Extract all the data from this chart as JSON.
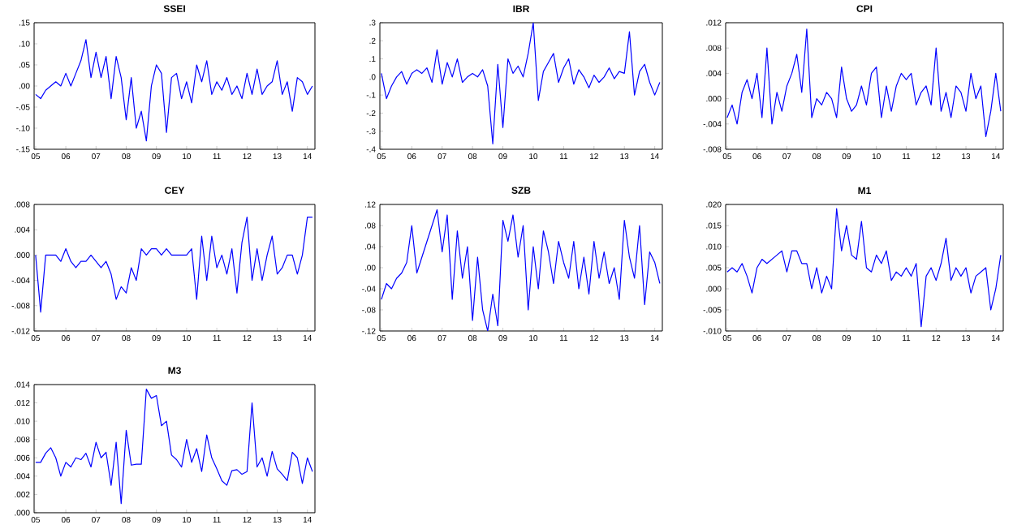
{
  "chart_data": [
    {
      "type": "line",
      "title": "SSEI",
      "color": "#0000ff",
      "xlim": [
        2004.95,
        2014.25
      ],
      "xticks": [
        {
          "value": 2005,
          "label": "05"
        },
        {
          "value": 2006,
          "label": "06"
        },
        {
          "value": 2007,
          "label": "07"
        },
        {
          "value": 2008,
          "label": "08"
        },
        {
          "value": 2009,
          "label": "09"
        },
        {
          "value": 2010,
          "label": "10"
        },
        {
          "value": 2011,
          "label": "11"
        },
        {
          "value": 2012,
          "label": "12"
        },
        {
          "value": 2013,
          "label": "13"
        },
        {
          "value": 2014,
          "label": "14"
        }
      ],
      "ylim": [
        -0.15,
        0.15
      ],
      "yticks": [
        {
          "value": -0.15,
          "label": "-.15"
        },
        {
          "value": -0.1,
          "label": "-.10"
        },
        {
          "value": -0.05,
          "label": "-.05"
        },
        {
          "value": 0,
          "label": ".00"
        },
        {
          "value": 0.05,
          "label": ".05"
        },
        {
          "value": 0.1,
          "label": ".10"
        },
        {
          "value": 0.15,
          "label": ".15"
        }
      ],
      "x": [
        2005,
        2005.167,
        2005.333,
        2005.5,
        2005.667,
        2005.833,
        2006,
        2006.167,
        2006.333,
        2006.5,
        2006.667,
        2006.833,
        2007,
        2007.167,
        2007.333,
        2007.5,
        2007.667,
        2007.833,
        2008,
        2008.167,
        2008.333,
        2008.5,
        2008.667,
        2008.833,
        2009,
        2009.167,
        2009.333,
        2009.5,
        2009.667,
        2009.833,
        2010,
        2010.167,
        2010.333,
        2010.5,
        2010.667,
        2010.833,
        2011,
        2011.167,
        2011.333,
        2011.5,
        2011.667,
        2011.833,
        2012,
        2012.167,
        2012.333,
        2012.5,
        2012.667,
        2012.833,
        2013,
        2013.167,
        2013.333,
        2013.5,
        2013.667,
        2013.833,
        2014,
        2014.167
      ],
      "values": [
        -0.02,
        -0.03,
        -0.01,
        0.0,
        0.01,
        0.0,
        0.03,
        0.0,
        0.03,
        0.06,
        0.11,
        0.02,
        0.08,
        0.02,
        0.07,
        -0.03,
        0.07,
        0.02,
        -0.08,
        0.02,
        -0.1,
        -0.06,
        -0.13,
        0.0,
        0.05,
        0.03,
        -0.11,
        0.02,
        0.03,
        -0.03,
        0.01,
        -0.04,
        0.05,
        0.01,
        0.06,
        -0.02,
        0.01,
        -0.01,
        0.02,
        -0.02,
        0.0,
        -0.03,
        0.03,
        -0.02,
        0.04,
        -0.02,
        0.0,
        0.01,
        0.06,
        -0.02,
        0.01,
        -0.06,
        0.02,
        0.01,
        -0.02,
        0.0
      ]
    },
    {
      "type": "line",
      "title": "IBR",
      "color": "#0000ff",
      "xlim": [
        2004.95,
        2014.25
      ],
      "xticks": [
        {
          "value": 2005,
          "label": "05"
        },
        {
          "value": 2006,
          "label": "06"
        },
        {
          "value": 2007,
          "label": "07"
        },
        {
          "value": 2008,
          "label": "08"
        },
        {
          "value": 2009,
          "label": "09"
        },
        {
          "value": 2010,
          "label": "10"
        },
        {
          "value": 2011,
          "label": "11"
        },
        {
          "value": 2012,
          "label": "12"
        },
        {
          "value": 2013,
          "label": "13"
        },
        {
          "value": 2014,
          "label": "14"
        }
      ],
      "ylim": [
        -0.4,
        0.3
      ],
      "yticks": [
        {
          "value": -0.4,
          "label": "-.4"
        },
        {
          "value": -0.3,
          "label": "-.3"
        },
        {
          "value": -0.2,
          "label": "-.2"
        },
        {
          "value": -0.1,
          "label": "-.1"
        },
        {
          "value": 0,
          "label": ".0"
        },
        {
          "value": 0.1,
          "label": ".1"
        },
        {
          "value": 0.2,
          "label": ".2"
        },
        {
          "value": 0.3,
          "label": ".3"
        }
      ],
      "x": [
        2005,
        2005.167,
        2005.333,
        2005.5,
        2005.667,
        2005.833,
        2006,
        2006.167,
        2006.333,
        2006.5,
        2006.667,
        2006.833,
        2007,
        2007.167,
        2007.333,
        2007.5,
        2007.667,
        2007.833,
        2008,
        2008.167,
        2008.333,
        2008.5,
        2008.667,
        2008.833,
        2009,
        2009.167,
        2009.333,
        2009.5,
        2009.667,
        2009.833,
        2010,
        2010.167,
        2010.333,
        2010.5,
        2010.667,
        2010.833,
        2011,
        2011.167,
        2011.333,
        2011.5,
        2011.667,
        2011.833,
        2012,
        2012.167,
        2012.333,
        2012.5,
        2012.667,
        2012.833,
        2013,
        2013.167,
        2013.333,
        2013.5,
        2013.667,
        2013.833,
        2014,
        2014.167
      ],
      "values": [
        0.02,
        -0.12,
        -0.05,
        0.0,
        0.03,
        -0.04,
        0.02,
        0.04,
        0.02,
        0.05,
        -0.03,
        0.15,
        -0.04,
        0.08,
        0.0,
        0.1,
        -0.03,
        0.0,
        0.02,
        0.0,
        0.04,
        -0.05,
        -0.37,
        0.07,
        -0.28,
        0.1,
        0.02,
        0.06,
        0.0,
        0.13,
        0.3,
        -0.13,
        0.03,
        0.08,
        0.13,
        -0.03,
        0.05,
        0.1,
        -0.04,
        0.04,
        0.0,
        -0.06,
        0.01,
        -0.03,
        0.0,
        0.05,
        -0.01,
        0.03,
        0.02,
        0.25,
        -0.1,
        0.03,
        0.07,
        -0.03,
        -0.1,
        -0.03
      ]
    },
    {
      "type": "line",
      "title": "CPI",
      "color": "#0000ff",
      "xlim": [
        2004.95,
        2014.25
      ],
      "xticks": [
        {
          "value": 2005,
          "label": "05"
        },
        {
          "value": 2006,
          "label": "06"
        },
        {
          "value": 2007,
          "label": "07"
        },
        {
          "value": 2008,
          "label": "08"
        },
        {
          "value": 2009,
          "label": "09"
        },
        {
          "value": 2010,
          "label": "10"
        },
        {
          "value": 2011,
          "label": "11"
        },
        {
          "value": 2012,
          "label": "12"
        },
        {
          "value": 2013,
          "label": "13"
        },
        {
          "value": 2014,
          "label": "14"
        }
      ],
      "ylim": [
        -0.008,
        0.012
      ],
      "yticks": [
        {
          "value": -0.008,
          "label": "-.008"
        },
        {
          "value": -0.004,
          "label": "-.004"
        },
        {
          "value": 0,
          "label": ".000"
        },
        {
          "value": 0.004,
          "label": ".004"
        },
        {
          "value": 0.008,
          "label": ".008"
        },
        {
          "value": 0.012,
          "label": ".012"
        }
      ],
      "x": [
        2005,
        2005.167,
        2005.333,
        2005.5,
        2005.667,
        2005.833,
        2006,
        2006.167,
        2006.333,
        2006.5,
        2006.667,
        2006.833,
        2007,
        2007.167,
        2007.333,
        2007.5,
        2007.667,
        2007.833,
        2008,
        2008.167,
        2008.333,
        2008.5,
        2008.667,
        2008.833,
        2009,
        2009.167,
        2009.333,
        2009.5,
        2009.667,
        2009.833,
        2010,
        2010.167,
        2010.333,
        2010.5,
        2010.667,
        2010.833,
        2011,
        2011.167,
        2011.333,
        2011.5,
        2011.667,
        2011.833,
        2012,
        2012.167,
        2012.333,
        2012.5,
        2012.667,
        2012.833,
        2013,
        2013.167,
        2013.333,
        2013.5,
        2013.667,
        2013.833,
        2014,
        2014.167
      ],
      "values": [
        -0.003,
        -0.001,
        -0.004,
        0.001,
        0.003,
        0.0,
        0.004,
        -0.003,
        0.008,
        -0.004,
        0.001,
        -0.002,
        0.002,
        0.004,
        0.007,
        0.001,
        0.011,
        -0.003,
        0.0,
        -0.001,
        0.001,
        0.0,
        -0.003,
        0.005,
        0.0,
        -0.002,
        -0.001,
        0.002,
        -0.001,
        0.004,
        0.005,
        -0.003,
        0.002,
        -0.002,
        0.002,
        0.004,
        0.003,
        0.004,
        -0.001,
        0.001,
        0.002,
        -0.001,
        0.008,
        -0.002,
        0.001,
        -0.003,
        0.002,
        0.001,
        -0.002,
        0.004,
        0.0,
        0.002,
        -0.006,
        -0.002,
        0.004,
        -0.002
      ]
    },
    {
      "type": "line",
      "title": "CEY",
      "color": "#0000ff",
      "xlim": [
        2004.95,
        2014.25
      ],
      "xticks": [
        {
          "value": 2005,
          "label": "05"
        },
        {
          "value": 2006,
          "label": "06"
        },
        {
          "value": 2007,
          "label": "07"
        },
        {
          "value": 2008,
          "label": "08"
        },
        {
          "value": 2009,
          "label": "09"
        },
        {
          "value": 2010,
          "label": "10"
        },
        {
          "value": 2011,
          "label": "11"
        },
        {
          "value": 2012,
          "label": "12"
        },
        {
          "value": 2013,
          "label": "13"
        },
        {
          "value": 2014,
          "label": "14"
        }
      ],
      "ylim": [
        -0.012,
        0.008
      ],
      "yticks": [
        {
          "value": -0.012,
          "label": "-.012"
        },
        {
          "value": -0.008,
          "label": "-.008"
        },
        {
          "value": -0.004,
          "label": "-.004"
        },
        {
          "value": 0,
          "label": ".000"
        },
        {
          "value": 0.004,
          "label": ".004"
        },
        {
          "value": 0.008,
          "label": ".008"
        }
      ],
      "x": [
        2005,
        2005.167,
        2005.333,
        2005.5,
        2005.667,
        2005.833,
        2006,
        2006.167,
        2006.333,
        2006.5,
        2006.667,
        2006.833,
        2007,
        2007.167,
        2007.333,
        2007.5,
        2007.667,
        2007.833,
        2008,
        2008.167,
        2008.333,
        2008.5,
        2008.667,
        2008.833,
        2009,
        2009.167,
        2009.333,
        2009.5,
        2009.667,
        2009.833,
        2010,
        2010.167,
        2010.333,
        2010.5,
        2010.667,
        2010.833,
        2011,
        2011.167,
        2011.333,
        2011.5,
        2011.667,
        2011.833,
        2012,
        2012.167,
        2012.333,
        2012.5,
        2012.667,
        2012.833,
        2013,
        2013.167,
        2013.333,
        2013.5,
        2013.667,
        2013.833,
        2014,
        2014.167
      ],
      "values": [
        0.0,
        -0.009,
        0.0,
        0.0,
        0.0,
        -0.001,
        0.001,
        -0.001,
        -0.002,
        -0.001,
        -0.001,
        0.0,
        -0.001,
        -0.002,
        -0.001,
        -0.003,
        -0.007,
        -0.005,
        -0.006,
        -0.002,
        -0.004,
        0.001,
        0.0,
        0.001,
        0.001,
        0.0,
        0.001,
        0.0,
        0.0,
        0.0,
        0.0,
        0.001,
        -0.007,
        0.003,
        -0.004,
        0.003,
        -0.002,
        0.0,
        -0.003,
        0.001,
        -0.006,
        0.002,
        0.006,
        -0.004,
        0.001,
        -0.004,
        0.0,
        0.003,
        -0.003,
        -0.002,
        0.0,
        0.0,
        -0.003,
        0.0,
        0.006,
        0.006
      ]
    },
    {
      "type": "line",
      "title": "SZB",
      "color": "#0000ff",
      "xlim": [
        2004.95,
        2014.25
      ],
      "xticks": [
        {
          "value": 2005,
          "label": "05"
        },
        {
          "value": 2006,
          "label": "06"
        },
        {
          "value": 2007,
          "label": "07"
        },
        {
          "value": 2008,
          "label": "08"
        },
        {
          "value": 2009,
          "label": "09"
        },
        {
          "value": 2010,
          "label": "10"
        },
        {
          "value": 2011,
          "label": "11"
        },
        {
          "value": 2012,
          "label": "12"
        },
        {
          "value": 2013,
          "label": "13"
        },
        {
          "value": 2014,
          "label": "14"
        }
      ],
      "ylim": [
        -0.12,
        0.12
      ],
      "yticks": [
        {
          "value": -0.12,
          "label": "-.12"
        },
        {
          "value": -0.08,
          "label": "-.08"
        },
        {
          "value": -0.04,
          "label": "-.04"
        },
        {
          "value": 0,
          "label": ".00"
        },
        {
          "value": 0.04,
          "label": ".04"
        },
        {
          "value": 0.08,
          "label": ".08"
        },
        {
          "value": 0.12,
          "label": ".12"
        }
      ],
      "x": [
        2005,
        2005.167,
        2005.333,
        2005.5,
        2005.667,
        2005.833,
        2006,
        2006.167,
        2006.333,
        2006.5,
        2006.667,
        2006.833,
        2007,
        2007.167,
        2007.333,
        2007.5,
        2007.667,
        2007.833,
        2008,
        2008.167,
        2008.333,
        2008.5,
        2008.667,
        2008.833,
        2009,
        2009.167,
        2009.333,
        2009.5,
        2009.667,
        2009.833,
        2010,
        2010.167,
        2010.333,
        2010.5,
        2010.667,
        2010.833,
        2011,
        2011.167,
        2011.333,
        2011.5,
        2011.667,
        2011.833,
        2012,
        2012.167,
        2012.333,
        2012.5,
        2012.667,
        2012.833,
        2013,
        2013.167,
        2013.333,
        2013.5,
        2013.667,
        2013.833,
        2014,
        2014.167
      ],
      "values": [
        -0.06,
        -0.03,
        -0.04,
        -0.02,
        -0.01,
        0.01,
        0.08,
        -0.01,
        0.02,
        0.05,
        0.08,
        0.11,
        0.03,
        0.1,
        -0.06,
        0.07,
        -0.02,
        0.04,
        -0.1,
        0.02,
        -0.08,
        -0.12,
        -0.05,
        -0.11,
        0.09,
        0.05,
        0.1,
        0.02,
        0.08,
        -0.08,
        0.04,
        -0.04,
        0.07,
        0.03,
        -0.03,
        0.05,
        0.01,
        -0.02,
        0.05,
        -0.04,
        0.02,
        -0.05,
        0.05,
        -0.02,
        0.03,
        -0.03,
        0.0,
        -0.06,
        0.09,
        0.02,
        -0.02,
        0.08,
        -0.07,
        0.03,
        0.01,
        -0.03
      ]
    },
    {
      "type": "line",
      "title": "M1",
      "color": "#0000ff",
      "xlim": [
        2004.95,
        2014.25
      ],
      "xticks": [
        {
          "value": 2005,
          "label": "05"
        },
        {
          "value": 2006,
          "label": "06"
        },
        {
          "value": 2007,
          "label": "07"
        },
        {
          "value": 2008,
          "label": "08"
        },
        {
          "value": 2009,
          "label": "09"
        },
        {
          "value": 2010,
          "label": "10"
        },
        {
          "value": 2011,
          "label": "11"
        },
        {
          "value": 2012,
          "label": "12"
        },
        {
          "value": 2013,
          "label": "13"
        },
        {
          "value": 2014,
          "label": "14"
        }
      ],
      "ylim": [
        -0.01,
        0.02
      ],
      "yticks": [
        {
          "value": -0.01,
          "label": "-.010"
        },
        {
          "value": -0.005,
          "label": "-.005"
        },
        {
          "value": 0,
          "label": ".000"
        },
        {
          "value": 0.005,
          "label": ".005"
        },
        {
          "value": 0.01,
          "label": ".010"
        },
        {
          "value": 0.015,
          "label": ".015"
        },
        {
          "value": 0.02,
          "label": ".020"
        }
      ],
      "x": [
        2005,
        2005.167,
        2005.333,
        2005.5,
        2005.667,
        2005.833,
        2006,
        2006.167,
        2006.333,
        2006.5,
        2006.667,
        2006.833,
        2007,
        2007.167,
        2007.333,
        2007.5,
        2007.667,
        2007.833,
        2008,
        2008.167,
        2008.333,
        2008.5,
        2008.667,
        2008.833,
        2009,
        2009.167,
        2009.333,
        2009.5,
        2009.667,
        2009.833,
        2010,
        2010.167,
        2010.333,
        2010.5,
        2010.667,
        2010.833,
        2011,
        2011.167,
        2011.333,
        2011.5,
        2011.667,
        2011.833,
        2012,
        2012.167,
        2012.333,
        2012.5,
        2012.667,
        2012.833,
        2013,
        2013.167,
        2013.333,
        2013.5,
        2013.667,
        2013.833,
        2014,
        2014.167
      ],
      "values": [
        0.004,
        0.005,
        0.004,
        0.006,
        0.003,
        -0.001,
        0.005,
        0.007,
        0.006,
        0.007,
        0.008,
        0.009,
        0.004,
        0.009,
        0.009,
        0.006,
        0.006,
        0.0,
        0.005,
        -0.001,
        0.003,
        0.0,
        0.019,
        0.009,
        0.015,
        0.008,
        0.007,
        0.016,
        0.005,
        0.004,
        0.008,
        0.006,
        0.009,
        0.002,
        0.004,
        0.003,
        0.005,
        0.003,
        0.006,
        -0.009,
        0.003,
        0.005,
        0.002,
        0.006,
        0.012,
        0.002,
        0.005,
        0.003,
        0.005,
        -0.001,
        0.003,
        0.004,
        0.005,
        -0.005,
        0.0,
        0.008
      ]
    },
    {
      "type": "line",
      "title": "M3",
      "color": "#0000ff",
      "xlim": [
        2004.95,
        2014.25
      ],
      "xticks": [
        {
          "value": 2005,
          "label": "05"
        },
        {
          "value": 2006,
          "label": "06"
        },
        {
          "value": 2007,
          "label": "07"
        },
        {
          "value": 2008,
          "label": "08"
        },
        {
          "value": 2009,
          "label": "09"
        },
        {
          "value": 2010,
          "label": "10"
        },
        {
          "value": 2011,
          "label": "11"
        },
        {
          "value": 2012,
          "label": "12"
        },
        {
          "value": 2013,
          "label": "13"
        },
        {
          "value": 2014,
          "label": "14"
        }
      ],
      "ylim": [
        0,
        0.014
      ],
      "yticks": [
        {
          "value": 0,
          "label": ".000"
        },
        {
          "value": 0.002,
          "label": ".002"
        },
        {
          "value": 0.004,
          "label": ".004"
        },
        {
          "value": 0.006,
          "label": ".006"
        },
        {
          "value": 0.008,
          "label": ".008"
        },
        {
          "value": 0.01,
          "label": ".010"
        },
        {
          "value": 0.012,
          "label": ".012"
        },
        {
          "value": 0.014,
          "label": ".014"
        }
      ],
      "x": [
        2005,
        2005.167,
        2005.333,
        2005.5,
        2005.667,
        2005.833,
        2006,
        2006.167,
        2006.333,
        2006.5,
        2006.667,
        2006.833,
        2007,
        2007.167,
        2007.333,
        2007.5,
        2007.667,
        2007.833,
        2008,
        2008.167,
        2008.333,
        2008.5,
        2008.667,
        2008.833,
        2009,
        2009.167,
        2009.333,
        2009.5,
        2009.667,
        2009.833,
        2010,
        2010.167,
        2010.333,
        2010.5,
        2010.667,
        2010.833,
        2011,
        2011.167,
        2011.333,
        2011.5,
        2011.667,
        2011.833,
        2012,
        2012.167,
        2012.333,
        2012.5,
        2012.667,
        2012.833,
        2013,
        2013.167,
        2013.333,
        2013.5,
        2013.667,
        2013.833,
        2014,
        2014.167
      ],
      "values": [
        0.0055,
        0.0055,
        0.0065,
        0.0071,
        0.006,
        0.004,
        0.0055,
        0.005,
        0.006,
        0.0058,
        0.0065,
        0.005,
        0.0077,
        0.006,
        0.0066,
        0.003,
        0.0077,
        0.001,
        0.009,
        0.0052,
        0.0053,
        0.0053,
        0.0135,
        0.0125,
        0.0128,
        0.0095,
        0.01,
        0.0063,
        0.0058,
        0.005,
        0.008,
        0.0055,
        0.007,
        0.0045,
        0.0085,
        0.006,
        0.0048,
        0.0035,
        0.003,
        0.0046,
        0.0047,
        0.0042,
        0.0045,
        0.012,
        0.005,
        0.006,
        0.004,
        0.0067,
        0.0048,
        0.0042,
        0.0035,
        0.0066,
        0.006,
        0.0032,
        0.006,
        0.0045
      ]
    }
  ]
}
